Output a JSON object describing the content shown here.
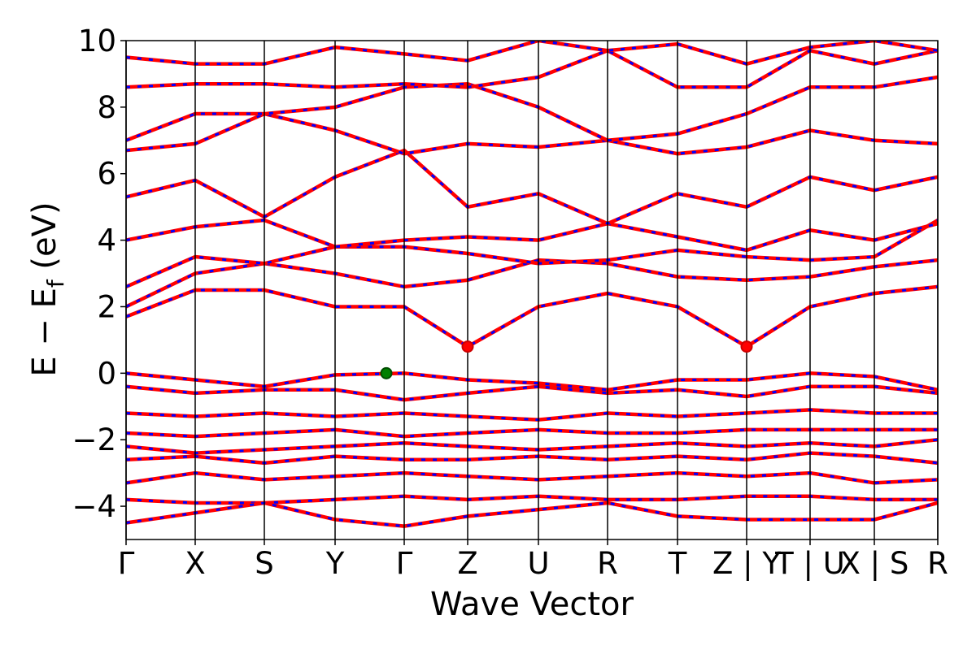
{
  "chart_data": {
    "type": "line",
    "x_label": "Wave Vector",
    "y_label": {
      "main": "E − E",
      "sub": "f",
      "unit": " (eV)"
    },
    "x": [
      0,
      0.85,
      1.7,
      2.57,
      3.42,
      4.2,
      5.07,
      5.92,
      6.78,
      7.63,
      8.41,
      9.2,
      9.98
    ],
    "xlim": [
      0,
      9.98
    ],
    "xticks": [
      {
        "value": 0,
        "label": "Γ"
      },
      {
        "value": 0.85,
        "label": "X"
      },
      {
        "value": 1.7,
        "label": "S"
      },
      {
        "value": 2.57,
        "label": "Y"
      },
      {
        "value": 3.42,
        "label": "Γ"
      },
      {
        "value": 4.2,
        "label": "Z"
      },
      {
        "value": 5.07,
        "label": "U"
      },
      {
        "value": 5.92,
        "label": "R"
      },
      {
        "value": 6.78,
        "label": "T"
      },
      {
        "value": 7.63,
        "label": "Z | Y"
      },
      {
        "value": 8.41,
        "label": "T | U"
      },
      {
        "value": 9.2,
        "label": "X | S"
      },
      {
        "value": 9.98,
        "label": "R"
      }
    ],
    "ylim": [
      -5,
      10
    ],
    "yticks": [
      {
        "value": -4,
        "label": "−4"
      },
      {
        "value": -2,
        "label": "−2"
      },
      0,
      2,
      4,
      6,
      8,
      10
    ],
    "line_color": "#ff0000",
    "dash_color": "#0000ff",
    "series": [
      {
        "values": [
          0,
          -0.2,
          -0.4,
          -0.05,
          0,
          -0.2,
          -0.3,
          -0.5,
          -0.2,
          -0.2,
          0,
          -0.1,
          -0.5
        ]
      },
      {
        "values": [
          -0.4,
          -0.6,
          -0.5,
          -0.5,
          -0.8,
          -0.6,
          -0.4,
          -0.6,
          -0.5,
          -0.7,
          -0.4,
          -0.4,
          -0.6
        ]
      },
      {
        "values": [
          -1.2,
          -1.3,
          -1.2,
          -1.3,
          -1.2,
          -1.3,
          -1.4,
          -1.2,
          -1.3,
          -1.2,
          -1.1,
          -1.2,
          -1.2
        ]
      },
      {
        "values": [
          -1.8,
          -1.9,
          -1.8,
          -1.7,
          -1.9,
          -1.8,
          -1.7,
          -1.8,
          -1.8,
          -1.7,
          -1.7,
          -1.7,
          -1.7
        ]
      },
      {
        "values": [
          -2.2,
          -2.4,
          -2.3,
          -2.2,
          -2.1,
          -2.2,
          -2.3,
          -2.2,
          -2.1,
          -2.2,
          -2.1,
          -2.2,
          -2.0
        ]
      },
      {
        "values": [
          -2.6,
          -2.5,
          -2.7,
          -2.5,
          -2.6,
          -2.6,
          -2.5,
          -2.6,
          -2.5,
          -2.6,
          -2.4,
          -2.5,
          -2.7
        ]
      },
      {
        "values": [
          -3.3,
          -3.0,
          -3.2,
          -3.1,
          -3.0,
          -3.1,
          -3.2,
          -3.1,
          -3.0,
          -3.1,
          -3.0,
          -3.3,
          -3.2
        ]
      },
      {
        "values": [
          -3.8,
          -3.9,
          -3.9,
          -3.8,
          -3.7,
          -3.8,
          -3.7,
          -3.8,
          -3.8,
          -3.7,
          -3.7,
          -3.8,
          -3.8
        ]
      },
      {
        "values": [
          -4.5,
          -4.2,
          -3.9,
          -4.4,
          -4.6,
          -4.3,
          -4.1,
          -3.9,
          -4.3,
          -4.4,
          -4.4,
          -4.4,
          -3.9
        ]
      },
      {
        "values": [
          1.7,
          2.5,
          2.5,
          2.0,
          2.0,
          0.8,
          2.0,
          2.4,
          2.0,
          0.8,
          2.0,
          2.4,
          2.6
        ]
      },
      {
        "values": [
          2.0,
          3.0,
          3.3,
          3.0,
          2.6,
          2.8,
          3.4,
          3.3,
          2.9,
          2.8,
          2.9,
          3.2,
          3.4
        ]
      },
      {
        "values": [
          2.6,
          3.5,
          3.3,
          3.8,
          3.8,
          3.6,
          3.3,
          3.4,
          3.7,
          3.5,
          3.4,
          3.5,
          4.6
        ]
      },
      {
        "values": [
          4.0,
          4.4,
          4.6,
          3.8,
          4.0,
          4.1,
          4.0,
          4.5,
          4.1,
          3.7,
          4.3,
          4.0,
          4.5
        ]
      },
      {
        "values": [
          5.3,
          5.8,
          4.7,
          5.9,
          6.7,
          5.0,
          5.4,
          4.5,
          5.4,
          5.0,
          5.9,
          5.5,
          5.9
        ]
      },
      {
        "values": [
          6.7,
          6.9,
          7.8,
          7.3,
          6.6,
          6.9,
          6.8,
          7.0,
          6.6,
          6.8,
          7.3,
          7.0,
          6.9
        ]
      },
      {
        "values": [
          7.0,
          7.8,
          7.8,
          8.0,
          8.6,
          8.7,
          8.0,
          7.0,
          7.2,
          7.8,
          8.6,
          8.6,
          8.9
        ]
      },
      {
        "values": [
          8.6,
          8.7,
          8.7,
          8.6,
          8.7,
          8.6,
          8.9,
          9.7,
          8.6,
          8.6,
          9.7,
          9.3,
          9.7
        ]
      },
      {
        "values": [
          9.5,
          9.3,
          9.3,
          9.8,
          9.6,
          9.4,
          10.0,
          9.7,
          9.9,
          9.3,
          9.8,
          10.0,
          9.7
        ]
      }
    ],
    "markers": [
      {
        "color": "#ff0000",
        "edge": "#cc0000",
        "x": [
          4.2,
          7.63
        ],
        "values": [
          0.8,
          0.8
        ]
      },
      {
        "color": "#008000",
        "edge": "#004d00",
        "x": [
          3.2
        ],
        "values": [
          0.0
        ]
      }
    ]
  }
}
